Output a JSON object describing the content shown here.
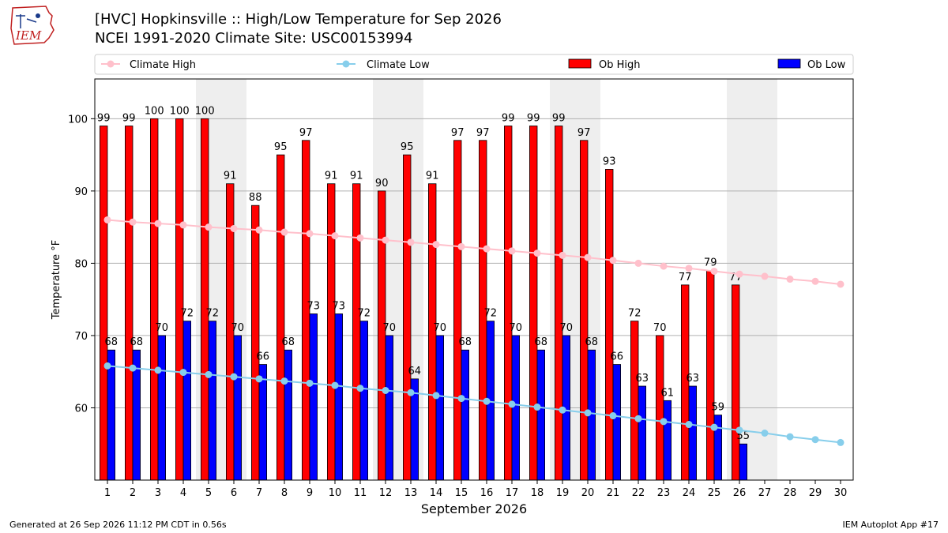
{
  "header": {
    "title_line1": "[HVC] Hopkinsville :: High/Low Temperature for Sep 2026",
    "title_line2": "NCEI 1991-2020 Climate Site: USC00153994",
    "logo_text": "IEM"
  },
  "footer": {
    "generated": "Generated at 26 Sep 2026 11:12 PM CDT in 0.56s",
    "app": "IEM Autoplot App #17"
  },
  "colors": {
    "ob_high": "#ff0000",
    "ob_low": "#0000ff",
    "climate_high": "#ffc0cb",
    "climate_low": "#87ceeb",
    "weekend_shade": "#eeeeee",
    "grid": "#b0b0b0"
  },
  "chart_data": {
    "type": "bar",
    "xlabel": "September 2026",
    "ylabel": "Temperature °F",
    "ylim": [
      50,
      105.5
    ],
    "yticks": [
      60,
      70,
      80,
      90,
      100
    ],
    "xlim": [
      0.5,
      30.5
    ],
    "x": [
      1,
      2,
      3,
      4,
      5,
      6,
      7,
      8,
      9,
      10,
      11,
      12,
      13,
      14,
      15,
      16,
      17,
      18,
      19,
      20,
      21,
      22,
      23,
      24,
      25,
      26,
      27,
      28,
      29,
      30
    ],
    "grid": "horizontal",
    "legend": "top",
    "shaded_days": [
      5,
      6,
      12,
      13,
      19,
      20,
      26,
      27
    ],
    "series": [
      {
        "name": "Climate High",
        "kind": "line",
        "values": [
          86.0,
          85.7,
          85.5,
          85.3,
          85.0,
          84.8,
          84.6,
          84.3,
          84.1,
          83.8,
          83.5,
          83.2,
          82.9,
          82.6,
          82.3,
          82.0,
          81.7,
          81.4,
          81.1,
          80.8,
          80.4,
          80.0,
          79.6,
          79.3,
          78.9,
          78.5,
          78.2,
          77.8,
          77.5,
          77.1
        ]
      },
      {
        "name": "Climate Low",
        "kind": "line",
        "values": [
          65.8,
          65.5,
          65.2,
          64.9,
          64.6,
          64.3,
          64.0,
          63.7,
          63.4,
          63.1,
          62.7,
          62.4,
          62.1,
          61.7,
          61.3,
          60.9,
          60.5,
          60.1,
          59.7,
          59.3,
          58.9,
          58.5,
          58.1,
          57.7,
          57.3,
          56.9,
          56.5,
          56.0,
          55.6,
          55.2
        ]
      },
      {
        "name": "Ob High",
        "kind": "bar",
        "values": [
          99,
          99,
          100,
          100,
          100,
          91,
          88,
          95,
          97,
          91,
          91,
          90,
          95,
          91,
          97,
          97,
          99,
          99,
          99,
          97,
          93,
          72,
          70,
          77,
          79,
          77,
          null,
          null,
          null,
          null
        ]
      },
      {
        "name": "Ob Low",
        "kind": "bar",
        "values": [
          68,
          68,
          70,
          72,
          72,
          70,
          66,
          68,
          73,
          73,
          72,
          70,
          64,
          70,
          68,
          72,
          70,
          68,
          70,
          68,
          66,
          63,
          61,
          63,
          59,
          55,
          null,
          null,
          null,
          null
        ]
      }
    ]
  }
}
